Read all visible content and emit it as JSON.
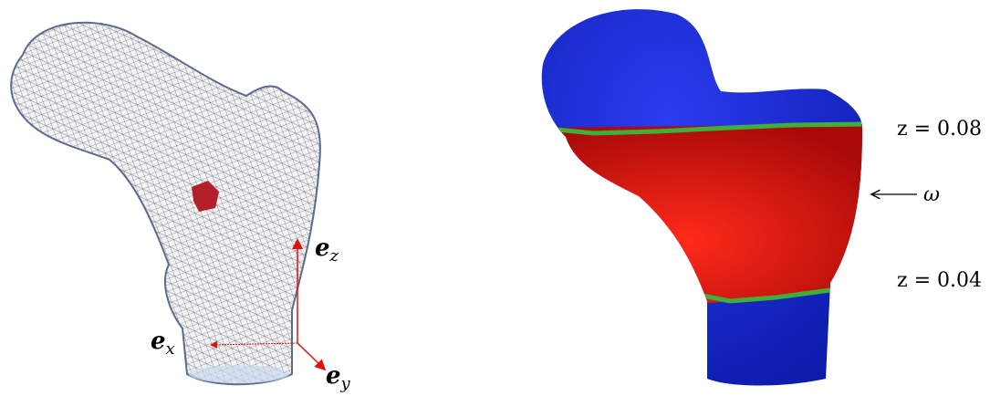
{
  "left_panel": {
    "axes": [
      {
        "vector": "e",
        "subscript": "z"
      },
      {
        "vector": "e",
        "subscript": "x"
      },
      {
        "vector": "e",
        "subscript": "y"
      }
    ]
  },
  "right_panel": {
    "upper_label": "z = 0.08",
    "region_label": "ω",
    "lower_label": "z = 0.04"
  }
}
